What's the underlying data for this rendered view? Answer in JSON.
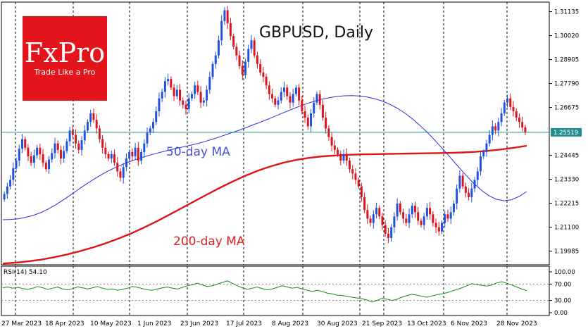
{
  "title": "GBPUSD, Daily",
  "logo": {
    "brand": "FxPro",
    "tagline": "Trade Like a Pro",
    "bg_color": "#e3141b"
  },
  "current_price": "1.25519",
  "colors": {
    "bull": "#1f50e0",
    "bear": "#d9141e",
    "ma50": "#2a2ae0",
    "ma200": "#dd1515",
    "rsi": "#138a13",
    "price_line": "#1f8f8f",
    "grid": "#000000"
  },
  "rsi_label": "RSI(14) 54.10",
  "ma50_label": "50-day MA",
  "ma200_label": "200-day MA",
  "chart_data": {
    "type": "candlestick",
    "title": "GBPUSD, Daily",
    "y_ticks": [
      "1.31135",
      "1.30020",
      "1.28905",
      "1.27790",
      "1.26675",
      "1.25519",
      "1.24445",
      "1.23330",
      "1.22215",
      "1.21100",
      "1.19985"
    ],
    "ylim": [
      1.1935,
      1.3158
    ],
    "x_ticks": [
      "27 Mar 2023",
      "18 Apr 2023",
      "10 May 2023",
      "1 Jun 2023",
      "23 Jun 2023",
      "17 Jul 2023",
      "8 Aug 2023",
      "30 Aug 2023",
      "21 Sep 2023",
      "13 Oct 2023",
      "6 Nov 2023",
      "28 Nov 2023"
    ],
    "close": [
      1.2265,
      1.23,
      1.233,
      1.2385,
      1.242,
      1.2475,
      1.252,
      1.248,
      1.244,
      1.241,
      1.2445,
      1.248,
      1.245,
      1.241,
      1.238,
      1.2425,
      1.2455,
      1.25,
      1.247,
      1.243,
      1.2465,
      1.251,
      1.256,
      1.254,
      1.25,
      1.247,
      1.2515,
      1.256,
      1.26,
      1.264,
      1.261,
      1.257,
      1.252,
      1.248,
      1.245,
      1.243,
      1.245,
      1.241,
      1.237,
      1.234,
      1.239,
      1.243,
      1.246,
      1.244,
      1.248,
      1.242,
      1.246,
      1.25,
      1.255,
      1.257,
      1.26,
      1.265,
      1.271,
      1.274,
      1.279,
      1.28,
      1.276,
      1.272,
      1.275,
      1.27,
      1.268,
      1.266,
      1.271,
      1.273,
      1.277,
      1.274,
      1.269,
      1.27,
      1.275,
      1.281,
      1.287,
      1.291,
      1.298,
      1.307,
      1.312,
      1.306,
      1.3,
      1.295,
      1.291,
      1.286,
      1.282,
      1.288,
      1.294,
      1.298,
      1.291,
      1.287,
      1.283,
      1.281,
      1.277,
      1.273,
      1.271,
      1.268,
      1.27,
      1.274,
      1.276,
      1.272,
      1.269,
      1.273,
      1.276,
      1.27,
      1.265,
      1.262,
      1.258,
      1.264,
      1.269,
      1.273,
      1.268,
      1.262,
      1.257,
      1.253,
      1.249,
      1.247,
      1.245,
      1.242,
      1.245,
      1.242,
      1.238,
      1.236,
      1.233,
      1.23,
      1.225,
      1.219,
      1.215,
      1.213,
      1.217,
      1.22,
      1.216,
      1.212,
      1.208,
      1.206,
      1.211,
      1.216,
      1.222,
      1.218,
      1.215,
      1.213,
      1.217,
      1.221,
      1.218,
      1.214,
      1.212,
      1.216,
      1.22,
      1.217,
      1.213,
      1.211,
      1.209,
      1.213,
      1.217,
      1.215,
      1.218,
      1.222,
      1.229,
      1.235,
      1.23,
      1.227,
      1.225,
      1.229,
      1.233,
      1.237,
      1.244,
      1.246,
      1.25,
      1.254,
      1.258,
      1.256,
      1.26,
      1.264,
      1.269,
      1.271,
      1.267,
      1.265,
      1.262,
      1.26,
      1.2575,
      1.2551
    ],
    "ma50": [
      1.2145,
      1.2146,
      1.2149,
      1.2156,
      1.2165,
      1.2178,
      1.2195,
      1.2215,
      1.2238,
      1.2262,
      1.2287,
      1.2311,
      1.2334,
      1.2355,
      1.2374,
      1.2391,
      1.2406,
      1.2419,
      1.2431,
      1.2442,
      1.2452,
      1.2461,
      1.247,
      1.2478,
      1.2486,
      1.2494,
      1.2503,
      1.2513,
      1.2524,
      1.2536,
      1.2548,
      1.256,
      1.2573,
      1.2587,
      1.26,
      1.2614,
      1.2629,
      1.2644,
      1.2658,
      1.2672,
      1.2685,
      1.2696,
      1.2706,
      1.2713,
      1.2719,
      1.2722,
      1.2723,
      1.2721,
      1.2716,
      1.2708,
      1.2697,
      1.2682,
      1.2663,
      1.264,
      1.2613,
      1.2582,
      1.2548,
      1.2511,
      1.2472,
      1.2432,
      1.2391,
      1.2352,
      1.2315,
      1.2283,
      1.2257,
      1.224,
      1.2233,
      1.2238,
      1.2253,
      1.2276
    ],
    "ma200": [
      1.1941,
      1.1945,
      1.1951,
      1.1959,
      1.197,
      1.1983,
      1.1998,
      1.2015,
      1.2034,
      1.2056,
      1.208,
      1.2107,
      1.2136,
      1.2167,
      1.2199,
      1.2231,
      1.2263,
      1.2294,
      1.2323,
      1.235,
      1.2374,
      1.2394,
      1.2411,
      1.2424,
      1.2433,
      1.244,
      1.2444,
      1.2447,
      1.2449,
      1.245,
      1.2451,
      1.2452,
      1.2453,
      1.2454,
      1.2455,
      1.2456,
      1.2458,
      1.2461,
      1.2466,
      1.2472,
      1.248,
      1.2489
    ],
    "rsi_ticks": [
      "100.00",
      "70.00",
      "30.00",
      "0.00"
    ],
    "rsi_ylim": [
      0,
      100
    ],
    "rsi": [
      61,
      63,
      60,
      62,
      59,
      57,
      60,
      64,
      61,
      57,
      60,
      63,
      58,
      56,
      59,
      63,
      61,
      58,
      61,
      64,
      60,
      57,
      58,
      55,
      57,
      60,
      64,
      62,
      59,
      56,
      55,
      58,
      61,
      63,
      60,
      58,
      62,
      66,
      69,
      72,
      68,
      64,
      66,
      70,
      74,
      78,
      72,
      66,
      61,
      57,
      60,
      63,
      59,
      56,
      58,
      62,
      66,
      63,
      60,
      62,
      58,
      55,
      52,
      55,
      52,
      48,
      46,
      43,
      42,
      40,
      38,
      36,
      34,
      31,
      26,
      30,
      35,
      33,
      30,
      33,
      38,
      42,
      45,
      43,
      40,
      38,
      41,
      44,
      46,
      49,
      53,
      57,
      61,
      66,
      71,
      69,
      67,
      65,
      68,
      73,
      76,
      72,
      68,
      63,
      58,
      54
    ]
  }
}
